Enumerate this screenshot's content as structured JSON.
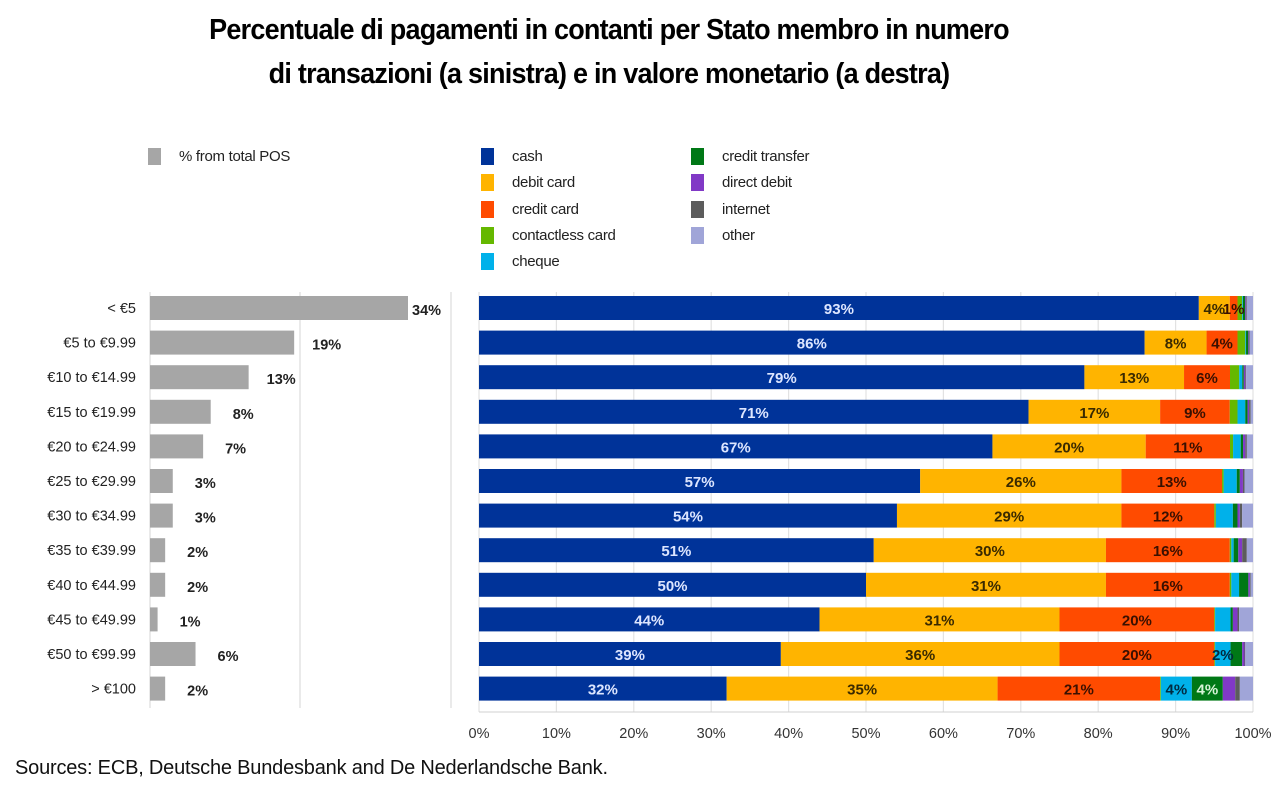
{
  "title": {
    "line1": "Percentuale di pagamenti in contanti per Stato membro in numero",
    "line2": "di transazioni (a sinistra) e in valore monetario (a destra)"
  },
  "source": "Sources: ECB, Deutsche Bundesbank and De Nederlandsche Bank.",
  "chart_data": [
    {
      "type": "bar",
      "orientation": "horizontal",
      "title": "",
      "legend": [
        {
          "name": "% from total POS",
          "color": "#a6a6a6"
        }
      ],
      "legend_position": "top-left",
      "categories": [
        "< €5",
        "€5 to €9.99",
        "€10 to €14.99",
        "€15 to €19.99",
        "€20 to €24.99",
        "€25 to €29.99",
        "€30 to €34.99",
        "€35 to €39.99",
        "€40 to €44.99",
        "€45 to €49.99",
        "€50 to €99.99",
        "> €100"
      ],
      "values": [
        34,
        19,
        13,
        8,
        7,
        3,
        3,
        2,
        2,
        1,
        6,
        2
      ],
      "value_labels": [
        "34%",
        "19%",
        "13%",
        "8%",
        "7%",
        "3%",
        "3%",
        "2%",
        "2%",
        "1%",
        "6%",
        "2%"
      ],
      "xlim": [
        0,
        40
      ],
      "grid": true,
      "bar_color": "#a6a6a6"
    },
    {
      "type": "bar",
      "orientation": "horizontal",
      "stacked": "percent",
      "title": "",
      "legend_position": "top",
      "categories": [
        "< €5",
        "€5 to €9.99",
        "€10 to €14.99",
        "€15 to €19.99",
        "€20 to €24.99",
        "€25 to €29.99",
        "€30 to €34.99",
        "€35 to €39.99",
        "€40 to €44.99",
        "€45 to €49.99",
        "€50 to €99.99",
        "> €100"
      ],
      "xlim": [
        0,
        100
      ],
      "xticks": [
        "0%",
        "10%",
        "20%",
        "30%",
        "40%",
        "50%",
        "60%",
        "70%",
        "80%",
        "90%",
        "100%"
      ],
      "grid": true,
      "series": [
        {
          "name": "cash",
          "color": "#003399",
          "label_color": "#dde6ff",
          "values": [
            93,
            86,
            79,
            71,
            67,
            57,
            54,
            51,
            50,
            44,
            39,
            32
          ],
          "labels": [
            "93%",
            "86%",
            "79%",
            "71%",
            "67%",
            "57%",
            "54%",
            "51%",
            "50%",
            "44%",
            "39%",
            "32%"
          ]
        },
        {
          "name": "debit card",
          "color": "#ffb400",
          "label_color": "#3a2a00",
          "values": [
            4,
            8,
            13,
            17,
            20,
            26,
            29,
            30,
            31,
            31,
            36,
            35
          ],
          "labels": [
            "4%",
            "8%",
            "13%",
            "17%",
            "20%",
            "26%",
            "29%",
            "30%",
            "31%",
            "31%",
            "36%",
            "35%"
          ]
        },
        {
          "name": "credit card",
          "color": "#ff4b00",
          "label_color": "#3a1000",
          "values": [
            1,
            4,
            6,
            9,
            11,
            13,
            12,
            16,
            16,
            20,
            20,
            21
          ],
          "labels": [
            "1%",
            "4%",
            "6%",
            "9%",
            "11%",
            "13%",
            "12%",
            "16%",
            "16%",
            "20%",
            "20%",
            "21%"
          ]
        },
        {
          "name": "contactless card",
          "color": "#65b800",
          "label_color": "#ffffff",
          "values": [
            0.6,
            1,
            1.2,
            1,
            0.4,
            0.2,
            0.2,
            0.2,
            0.2,
            0.1,
            0.1,
            0.1
          ],
          "labels": [
            "",
            "",
            "",
            "",
            "",
            "",
            "",
            "",
            "",
            "",
            "",
            ""
          ]
        },
        {
          "name": "cheque",
          "color": "#00b1ea",
          "label_color": "#002a40",
          "values": [
            0.1,
            0.1,
            0.4,
            1,
            1,
            1.7,
            2.2,
            0.3,
            1,
            2,
            2,
            4
          ],
          "labels": [
            "",
            "",
            "",
            "",
            "",
            "",
            "",
            "",
            "",
            "",
            "2%",
            "4%"
          ]
        },
        {
          "name": "credit transfer",
          "color": "#007816",
          "label_color": "#d8f5d8",
          "values": [
            0.3,
            0.3,
            0.2,
            0.3,
            0.3,
            0.4,
            0.6,
            0.6,
            1.2,
            0.3,
            1.5,
            4
          ],
          "labels": [
            "",
            "",
            "",
            "",
            "",
            "",
            "",
            "",
            "",
            "",
            "",
            "4%"
          ]
        },
        {
          "name": "direct debit",
          "color": "#8139c6",
          "label_color": "#ffffff",
          "values": [
            0.1,
            0.1,
            0.2,
            0.2,
            0.3,
            0.4,
            0.3,
            0.5,
            0.2,
            0.6,
            0.3,
            1.6
          ],
          "labels": [
            "",
            "",
            "",
            "",
            "",
            "",
            "",
            "",
            "",
            "",
            "",
            ""
          ]
        },
        {
          "name": "internet",
          "color": "#5c5c5c",
          "label_color": "#ffffff",
          "values": [
            0.1,
            0.1,
            0.1,
            0.2,
            0.2,
            0.2,
            0.3,
            0.6,
            0.1,
            0.2,
            0.1,
            0.6
          ],
          "labels": [
            "",
            "",
            "",
            "",
            "",
            "",
            "",
            "",
            "",
            "",
            "",
            ""
          ]
        },
        {
          "name": "other",
          "color": "#a0a5d8",
          "label_color": "#ffffff",
          "values": [
            0.8,
            0.4,
            0.9,
            0.3,
            0.8,
            1.1,
            1.4,
            0.8,
            0.3,
            1.8,
            1,
            1.7
          ],
          "labels": [
            "",
            "",
            "",
            "",
            "",
            "",
            "",
            "",
            "",
            "",
            "",
            ""
          ]
        }
      ]
    }
  ]
}
